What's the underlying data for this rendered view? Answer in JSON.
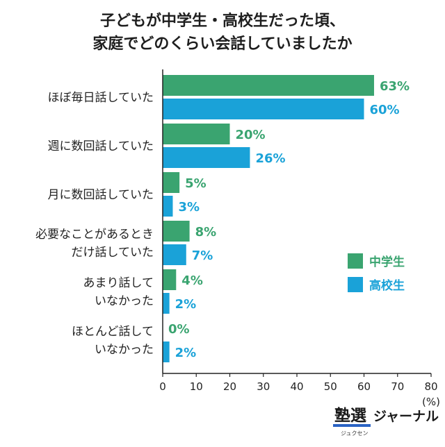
{
  "chart_data": {
    "type": "bar",
    "orientation": "horizontal",
    "title_lines": [
      "子どもが中学生・高校生だった頃、",
      "家庭でどのくらい会話していましたか"
    ],
    "categories": [
      [
        "ほぼ毎日話していた"
      ],
      [
        "週に数回話していた"
      ],
      [
        "月に数回話していた"
      ],
      [
        "必要なことがあるとき",
        "だけ話していた"
      ],
      [
        "あまり話して",
        "いなかった"
      ],
      [
        "ほとんど話して",
        "いなかった"
      ]
    ],
    "series": [
      {
        "name": "中学生",
        "color": "#3aa470",
        "values": [
          63,
          20,
          5,
          8,
          4,
          0
        ]
      },
      {
        "name": "高校生",
        "color": "#1aa2d8",
        "values": [
          60,
          26,
          3,
          7,
          2,
          2
        ]
      }
    ],
    "value_suffix": "%",
    "xlim": [
      0,
      80
    ],
    "xticks": [
      0,
      10,
      20,
      30,
      40,
      50,
      60,
      70,
      80
    ],
    "unit_label": "(%)",
    "legend_position": "right"
  },
  "logo": {
    "main": "塾選",
    "sub": "ジャーナル",
    "reading": "ジュクセン"
  }
}
